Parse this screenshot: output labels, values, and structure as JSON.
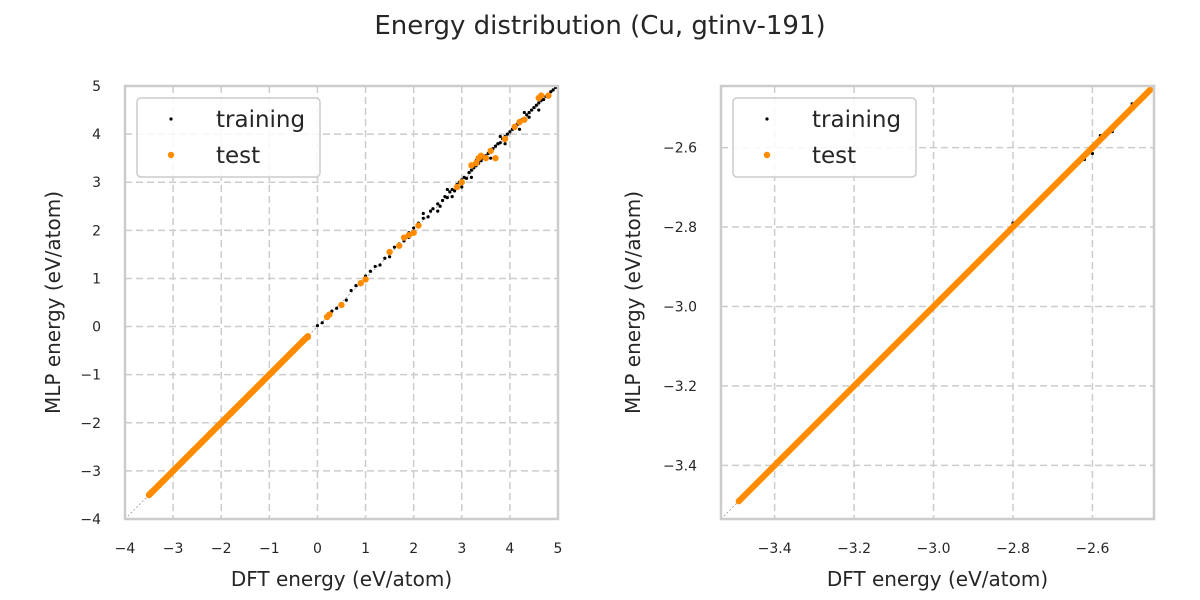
{
  "figure": {
    "title": "Energy distribution (Cu, gtinv-191)"
  },
  "chart_data": [
    {
      "type": "scatter",
      "xlabel": "DFT energy (eV/atom)",
      "ylabel": "MLP energy (eV/atom)",
      "xlim": [
        -4,
        5
      ],
      "ylim": [
        -4,
        5
      ],
      "xticks": [
        "−4",
        "−3",
        "−2",
        "−1",
        "0",
        "1",
        "2",
        "3",
        "4",
        "5"
      ],
      "yticks": [
        "−4",
        "−3",
        "−2",
        "−1",
        "0",
        "1",
        "2",
        "3",
        "4",
        "5"
      ],
      "grid": true,
      "legend_position": "top-left",
      "reference_line": "y = x",
      "series": [
        {
          "name": "training",
          "color": "#000000",
          "points": [
            [
              -3.5,
              -3.5
            ],
            [
              -3.2,
              -3.2
            ],
            [
              -2.9,
              -2.9
            ],
            [
              -2.5,
              -2.5
            ],
            [
              -2.0,
              -2.0
            ],
            [
              -1.6,
              -1.6
            ],
            [
              -1.2,
              -1.2
            ],
            [
              -0.9,
              -0.92
            ],
            [
              -0.6,
              -0.58
            ],
            [
              -0.4,
              -0.42
            ],
            [
              -0.2,
              -0.2
            ],
            [
              0.0,
              0.02
            ],
            [
              0.1,
              0.08
            ],
            [
              0.3,
              0.32
            ],
            [
              0.4,
              0.38
            ],
            [
              0.6,
              0.55
            ],
            [
              0.7,
              0.75
            ],
            [
              0.8,
              0.85
            ],
            [
              0.9,
              0.88
            ],
            [
              1.0,
              1.05
            ],
            [
              1.1,
              1.15
            ],
            [
              1.2,
              1.25
            ],
            [
              1.3,
              1.28
            ],
            [
              1.4,
              1.42
            ],
            [
              1.5,
              1.45
            ],
            [
              1.6,
              1.65
            ],
            [
              1.7,
              1.72
            ],
            [
              1.8,
              1.78
            ],
            [
              1.9,
              1.95
            ],
            [
              2.0,
              2.05
            ],
            [
              2.1,
              2.15
            ],
            [
              2.2,
              2.25
            ],
            [
              2.3,
              2.28
            ],
            [
              2.35,
              2.4
            ],
            [
              2.4,
              2.45
            ],
            [
              2.5,
              2.55
            ],
            [
              2.55,
              2.5
            ],
            [
              2.6,
              2.62
            ],
            [
              2.65,
              2.7
            ],
            [
              2.7,
              2.68
            ],
            [
              2.75,
              2.8
            ],
            [
              2.8,
              2.85
            ],
            [
              2.85,
              2.82
            ],
            [
              2.9,
              2.95
            ],
            [
              2.95,
              3.0
            ],
            [
              3.0,
              3.05
            ],
            [
              3.05,
              3.1
            ],
            [
              3.1,
              3.08
            ],
            [
              3.15,
              3.2
            ],
            [
              3.2,
              3.25
            ],
            [
              3.25,
              3.3
            ],
            [
              3.3,
              3.35
            ],
            [
              3.35,
              3.4
            ],
            [
              3.4,
              3.45
            ],
            [
              3.45,
              3.5
            ],
            [
              3.5,
              3.55
            ],
            [
              3.55,
              3.6
            ],
            [
              3.6,
              3.62
            ],
            [
              3.65,
              3.7
            ],
            [
              3.7,
              3.75
            ],
            [
              3.75,
              3.8
            ],
            [
              3.8,
              3.82
            ],
            [
              3.85,
              3.9
            ],
            [
              3.9,
              3.95
            ],
            [
              3.95,
              4.0
            ],
            [
              4.0,
              4.05
            ],
            [
              4.05,
              4.1
            ],
            [
              4.1,
              4.12
            ],
            [
              4.15,
              4.2
            ],
            [
              4.2,
              4.25
            ],
            [
              4.25,
              4.3
            ],
            [
              4.3,
              4.32
            ],
            [
              4.35,
              4.4
            ],
            [
              4.4,
              4.45
            ],
            [
              4.45,
              4.5
            ],
            [
              4.5,
              4.55
            ],
            [
              4.55,
              4.6
            ],
            [
              4.6,
              4.65
            ],
            [
              4.65,
              4.7
            ],
            [
              4.7,
              4.72
            ],
            [
              4.75,
              4.78
            ],
            [
              4.8,
              4.82
            ],
            [
              4.85,
              4.88
            ],
            [
              4.9,
              4.92
            ],
            [
              4.95,
              4.97
            ],
            [
              3.0,
              2.9
            ],
            [
              3.2,
              3.1
            ],
            [
              2.5,
              2.4
            ],
            [
              4.2,
              4.1
            ],
            [
              4.6,
              4.5
            ],
            [
              3.6,
              3.5
            ],
            [
              2.8,
              2.7
            ],
            [
              1.9,
              1.85
            ],
            [
              3.9,
              3.8
            ],
            [
              4.4,
              4.35
            ],
            [
              3.3,
              3.45
            ],
            [
              2.7,
              2.85
            ],
            [
              3.8,
              3.95
            ],
            [
              4.3,
              4.45
            ],
            [
              2.2,
              2.35
            ]
          ]
        },
        {
          "name": "test",
          "color": "#ff8c00",
          "points": [
            [
              -3.5,
              -3.5
            ],
            [
              -3.45,
              -3.45
            ],
            [
              -3.4,
              -3.4
            ],
            [
              -3.3,
              -3.3
            ],
            [
              -3.2,
              -3.2
            ],
            [
              -3.0,
              -3.0
            ],
            [
              -2.8,
              -2.8
            ],
            [
              -2.6,
              -2.6
            ],
            [
              -2.4,
              -2.4
            ],
            [
              -2.2,
              -2.2
            ],
            [
              -2.0,
              -2.0
            ],
            [
              -1.8,
              -1.8
            ],
            [
              -1.6,
              -1.6
            ],
            [
              -1.4,
              -1.4
            ],
            [
              -1.0,
              -1.0
            ],
            [
              -0.8,
              -0.8
            ],
            [
              -0.5,
              -0.5
            ],
            [
              -0.3,
              -0.3
            ],
            [
              -0.2,
              -0.22
            ],
            [
              0.2,
              0.2
            ],
            [
              0.25,
              0.25
            ],
            [
              0.5,
              0.45
            ],
            [
              0.9,
              0.9
            ],
            [
              1.0,
              0.98
            ],
            [
              1.5,
              1.55
            ],
            [
              1.7,
              1.68
            ],
            [
              1.8,
              1.85
            ],
            [
              1.9,
              1.9
            ],
            [
              2.0,
              1.95
            ],
            [
              2.1,
              2.1
            ],
            [
              2.9,
              2.9
            ],
            [
              3.0,
              3.0
            ],
            [
              3.2,
              3.35
            ],
            [
              3.3,
              3.4
            ],
            [
              3.35,
              3.5
            ],
            [
              3.4,
              3.55
            ],
            [
              3.5,
              3.5
            ],
            [
              3.6,
              3.65
            ],
            [
              3.7,
              3.5
            ],
            [
              3.9,
              3.9
            ],
            [
              4.1,
              4.15
            ],
            [
              4.2,
              4.25
            ],
            [
              4.3,
              4.3
            ],
            [
              4.6,
              4.75
            ],
            [
              4.65,
              4.8
            ],
            [
              4.8,
              4.8
            ]
          ]
        }
      ]
    },
    {
      "type": "scatter",
      "xlabel": "DFT energy (eV/atom)",
      "ylabel": "MLP energy (eV/atom)",
      "xlim": [
        -3.535,
        -2.445
      ],
      "ylim": [
        -3.535,
        -2.445
      ],
      "xticks": [
        "−3.4",
        "−3.2",
        "−3.0",
        "−2.8",
        "−2.6"
      ],
      "yticks": [
        "−3.4",
        "−3.2",
        "−3.0",
        "−2.8",
        "−2.6"
      ],
      "grid": true,
      "legend_position": "top-left",
      "reference_line": "y = x",
      "series": [
        {
          "name": "training",
          "color": "#000000",
          "points": [
            [
              -3.48,
              -3.48
            ],
            [
              -3.3,
              -3.3
            ],
            [
              -3.1,
              -3.1
            ],
            [
              -2.9,
              -2.9
            ],
            [
              -2.8,
              -2.79
            ],
            [
              -2.7,
              -2.7
            ],
            [
              -2.62,
              -2.63
            ],
            [
              -2.6,
              -2.615
            ],
            [
              -2.58,
              -2.57
            ],
            [
              -2.55,
              -2.56
            ],
            [
              -2.53,
              -2.535
            ],
            [
              -2.5,
              -2.49
            ],
            [
              -2.48,
              -2.485
            ],
            [
              -2.46,
              -2.455
            ]
          ]
        },
        {
          "name": "test",
          "color": "#ff8c00",
          "line_from": [
            -3.49,
            -3.49
          ],
          "line_to": [
            -2.455,
            -2.455
          ],
          "line_count": 220,
          "points": [
            [
              -2.6,
              -2.6
            ],
            [
              -2.55,
              -2.55
            ],
            [
              -2.5,
              -2.5
            ],
            [
              -2.47,
              -2.47
            ]
          ]
        }
      ]
    }
  ]
}
